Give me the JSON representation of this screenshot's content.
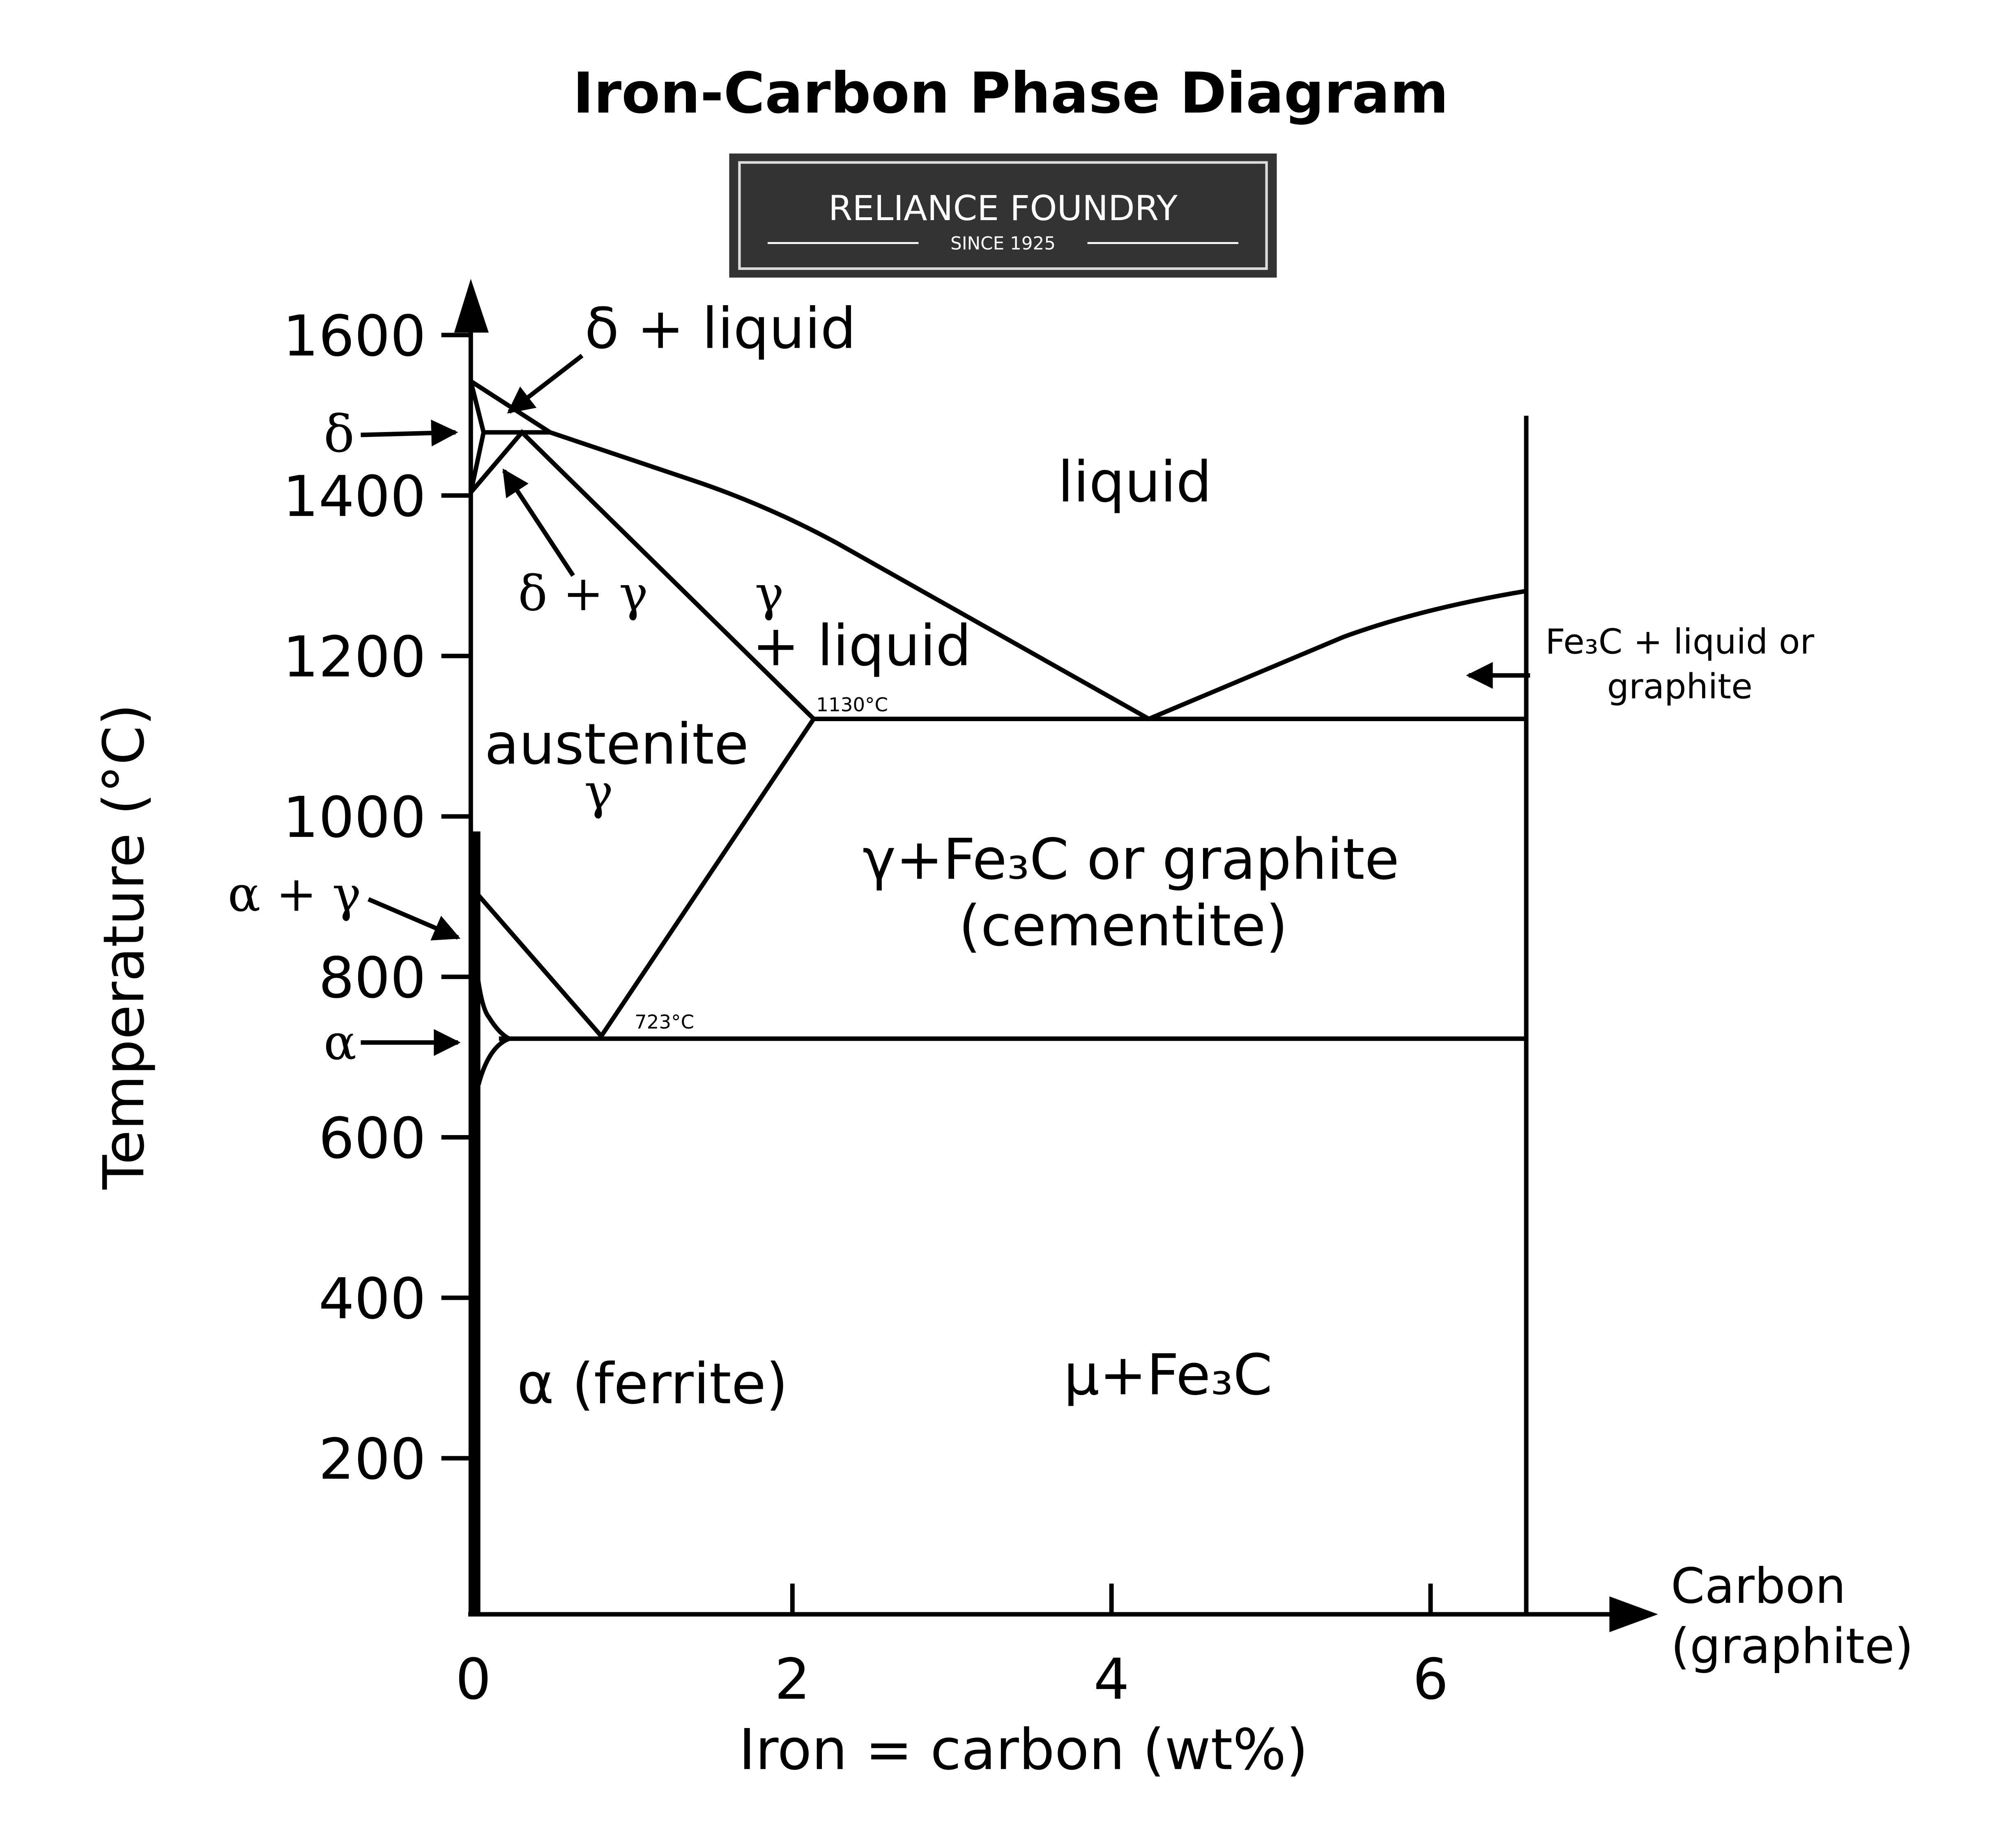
{
  "title": "Iron-Carbon Phase Diagram",
  "brand": {
    "name": "RELIANCE FOUNDRY",
    "tagline": "SINCE 1925"
  },
  "y_axis": {
    "label": "Temperature  (°C)",
    "ticks": [
      200,
      400,
      600,
      800,
      1000,
      1200,
      1400,
      1600
    ]
  },
  "x_axis": {
    "label": "Iron = carbon (wt%)",
    "ticks": [
      0,
      2,
      4,
      6
    ],
    "end_label": [
      "Carbon",
      "(graphite)"
    ]
  },
  "regions": {
    "delta_liquid": "δ + liquid",
    "delta": "δ",
    "delta_gamma": "δ + γ",
    "gamma_liquid": [
      "γ",
      "+ liquid"
    ],
    "liquid": "liquid",
    "austenite": [
      "austenite",
      "γ"
    ],
    "alpha_gamma": "α + γ",
    "alpha": "α",
    "gamma_fe3c": [
      "γ+Fe₃C  or graphite",
      "(cementite)"
    ],
    "ferrite": "α (ferrite)",
    "mu_fe3c": "μ+Fe₃C",
    "fe3c_liquid": [
      "Fe₃C + liquid or",
      "graphite"
    ]
  },
  "annotations": {
    "eutectic": "1130°C",
    "eutectoid": "723°C"
  }
}
